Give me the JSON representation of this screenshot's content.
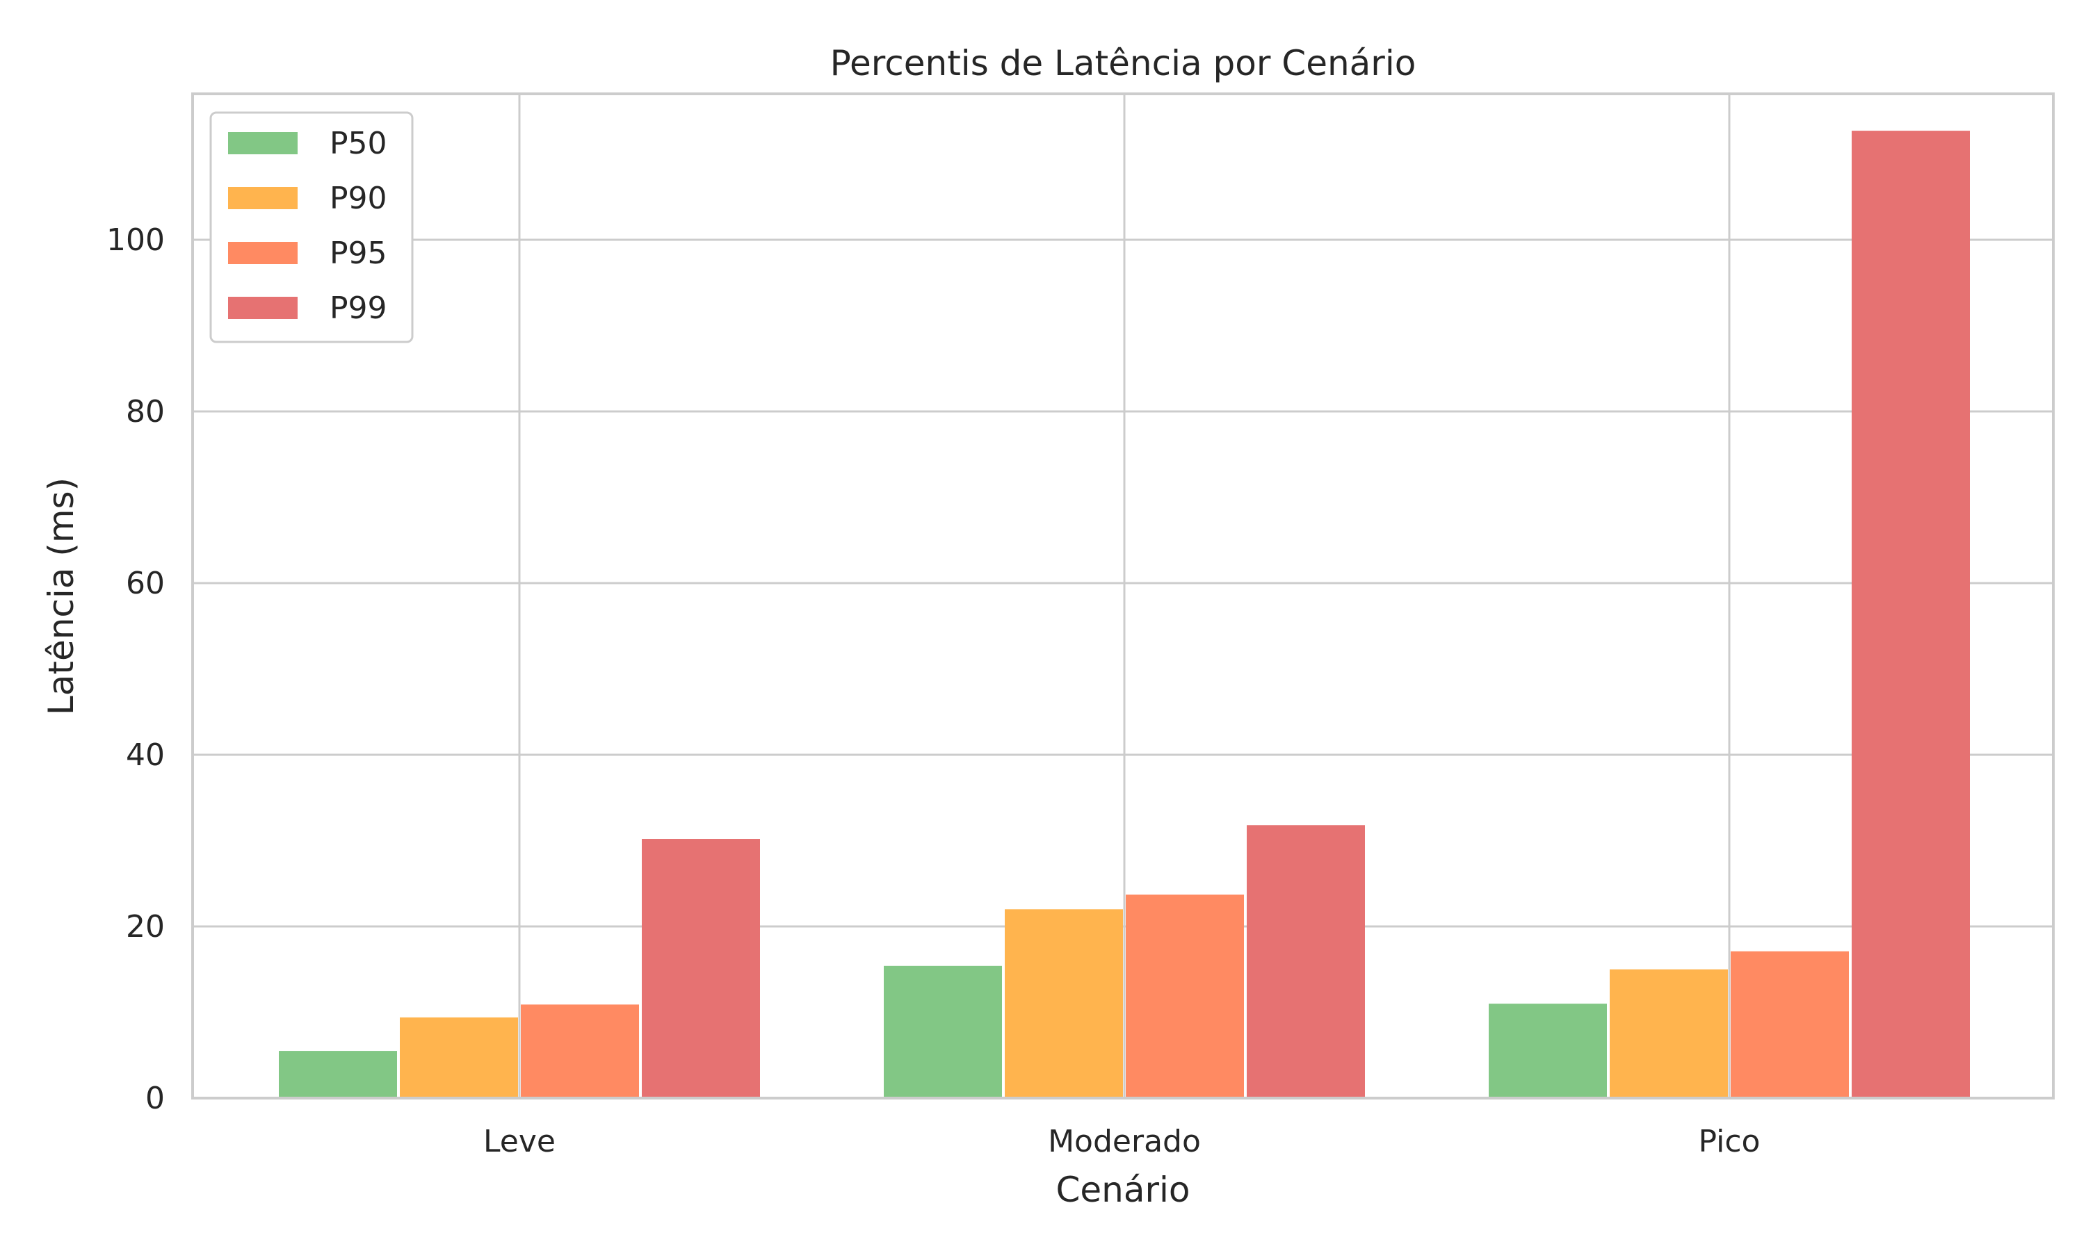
{
  "chart_data": {
    "type": "bar",
    "title": "Percentis de Latência por Cenário",
    "xlabel": "Cenário",
    "ylabel": "Latência (ms)",
    "categories": [
      "Leve",
      "Moderado",
      "Pico"
    ],
    "ylim": [
      0,
      117
    ],
    "yticks": [
      0,
      20,
      40,
      60,
      80,
      100
    ],
    "grid": true,
    "legend_position": "top-left",
    "series": [
      {
        "name": "P50",
        "color": "#82c785",
        "values": [
          5.5,
          15.4,
          11.0
        ]
      },
      {
        "name": "P90",
        "color": "#ffb44e",
        "values": [
          9.4,
          22.0,
          15.0
        ]
      },
      {
        "name": "P95",
        "color": "#ff8a62",
        "values": [
          10.9,
          23.7,
          17.1
        ]
      },
      {
        "name": "P99",
        "color": "#e67272",
        "values": [
          30.2,
          31.8,
          112.7
        ]
      }
    ]
  }
}
